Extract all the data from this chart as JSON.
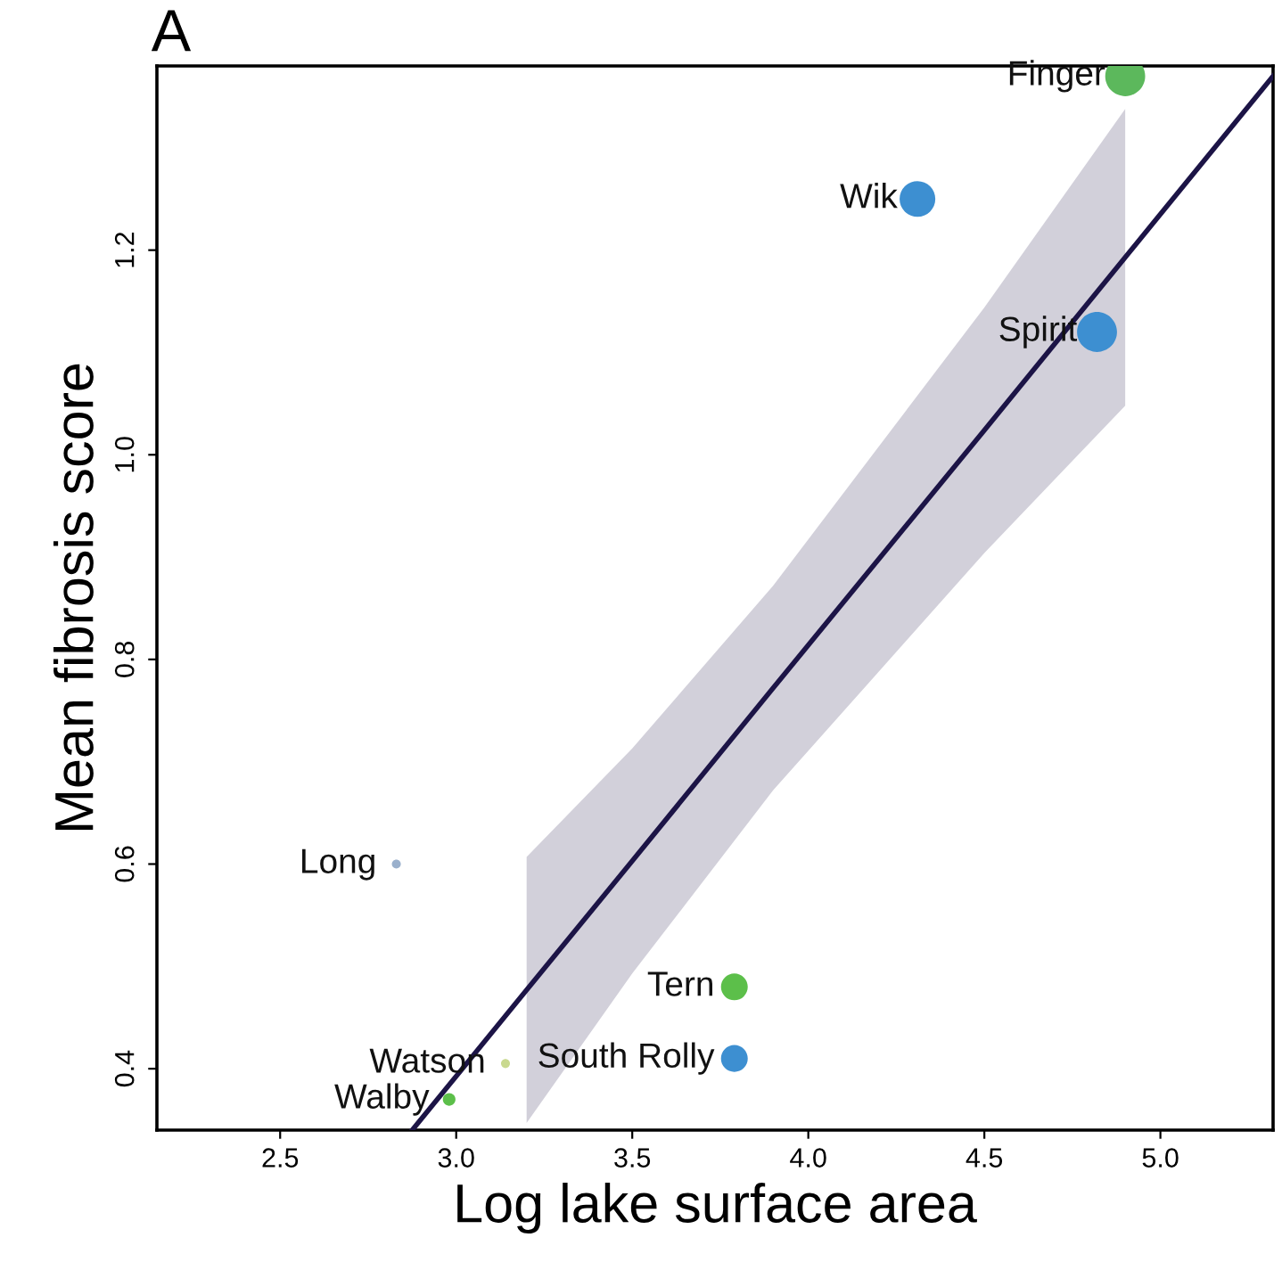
{
  "chart_data": {
    "type": "bubble",
    "title": "A",
    "xlabel": "Log lake surface area",
    "ylabel": "Mean fibrosis score",
    "xlim": [
      2.15,
      5.32
    ],
    "ylim": [
      0.34,
      1.38
    ],
    "xticks": [
      {
        "value": 2.5,
        "label": "2.5"
      },
      {
        "value": 3.0,
        "label": "3.0"
      },
      {
        "value": 3.5,
        "label": "3.5"
      },
      {
        "value": 4.0,
        "label": "4.0"
      },
      {
        "value": 4.5,
        "label": "4.5"
      },
      {
        "value": 5.0,
        "label": "5.0"
      }
    ],
    "yticks": [
      {
        "value": 0.4,
        "label": "0.4"
      },
      {
        "value": 0.6,
        "label": "0.6"
      },
      {
        "value": 0.8,
        "label": "0.8"
      },
      {
        "value": 1.0,
        "label": "1.0"
      },
      {
        "value": 1.2,
        "label": "1.2"
      }
    ],
    "grid": false,
    "legend": false,
    "series": [
      {
        "x": [
          4.9,
          4.31,
          4.82,
          2.83,
          3.79,
          3.79,
          3.14,
          2.98
        ],
        "values": [
          1.37,
          1.25,
          1.12,
          0.6,
          0.48,
          0.41,
          0.405,
          0.37
        ],
        "sizes": [
          1.0,
          0.8,
          1.0,
          0.05,
          0.45,
          0.45,
          0.05,
          0.1
        ],
        "colors": [
          "#5cb85c",
          "#3d8fd1",
          "#3d8fd1",
          "#9ab0cc",
          "#5cbf4a",
          "#3d8fd1",
          "#c9d98f",
          "#5cbf4a"
        ]
      },
      {
        "type": "line",
        "color": "#1c1446",
        "x": [
          2.875,
          3.2,
          3.5,
          3.9,
          4.5,
          4.9,
          5.32
        ],
        "values": [
          0.34,
          0.477,
          0.603,
          0.772,
          1.024,
          1.193,
          1.37
        ],
        "lower": [
          null,
          0.347,
          0.493,
          0.672,
          0.904,
          1.048,
          null
        ],
        "upper": [
          null,
          0.607,
          0.713,
          0.872,
          1.144,
          1.338,
          null
        ]
      }
    ],
    "annotations": [
      {
        "text": "Finger",
        "x": 4.9,
        "y": 1.37
      },
      {
        "text": "Wik",
        "x": 4.31,
        "y": 1.25
      },
      {
        "text": "Spirit",
        "x": 4.82,
        "y": 1.12
      },
      {
        "text": "Long",
        "x": 2.83,
        "y": 0.6
      },
      {
        "text": "Tern",
        "x": 3.79,
        "y": 0.48
      },
      {
        "text": "South Rolly",
        "x": 3.79,
        "y": 0.41
      },
      {
        "text": "Watson",
        "x": 3.14,
        "y": 0.405
      },
      {
        "text": "Walby",
        "x": 2.98,
        "y": 0.37
      }
    ]
  }
}
